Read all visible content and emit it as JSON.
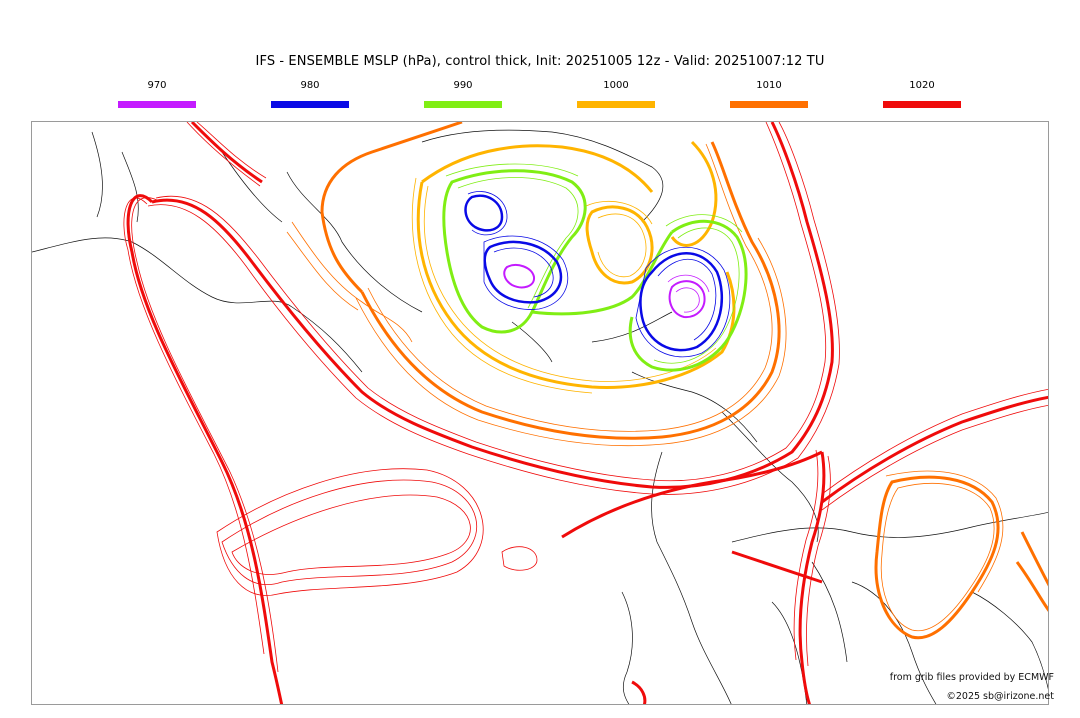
{
  "header": {
    "title": "IFS - ENSEMBLE MSLP (hPa), control thick, Init: 20251005 12z - Valid: 20251007:12 TU"
  },
  "legend": [
    {
      "label": "970",
      "color": "#c41bff"
    },
    {
      "label": "980",
      "color": "#0a0ae6"
    },
    {
      "label": "990",
      "color": "#80ee14"
    },
    {
      "label": "1000",
      "color": "#ffb400"
    },
    {
      "label": "1010",
      "color": "#ff7000"
    },
    {
      "label": "1020",
      "color": "#ef0b0b"
    }
  ],
  "credits": {
    "source": "from grib files provided by ECMWF",
    "copyright": "©2025 sb@irizone.net"
  }
}
